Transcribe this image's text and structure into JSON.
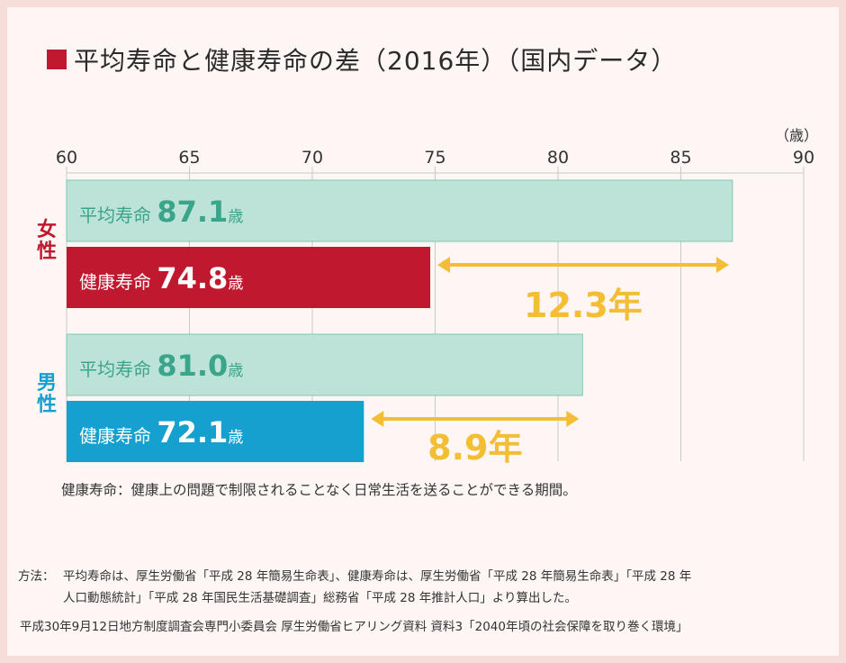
{
  "title": "平均寿命と健康寿命の差（2016年）（国内データ）",
  "colors": {
    "accent_red": "#c0182f",
    "accent_blue": "#16a0cf",
    "avg_bar_fill": "#bde3d8",
    "avg_bar_stroke": "#7fc7b3",
    "avg_text": "#3aa58a",
    "gap_arrow": "#f3bd34",
    "grid": "#c9c9c9"
  },
  "chart_data": {
    "type": "bar",
    "orientation": "horizontal",
    "xaxis_unit_label": "（歳）",
    "xlim": [
      60,
      90
    ],
    "ticks": [
      60,
      65,
      70,
      75,
      80,
      85,
      90
    ],
    "unit": "歳",
    "series": [
      {
        "name": "平均寿命",
        "labels": [
          "平均寿命",
          "平均寿命"
        ]
      },
      {
        "name": "健康寿命",
        "labels": [
          "健康寿命",
          "健康寿命"
        ]
      }
    ],
    "groups": [
      {
        "category": "女性",
        "avg_label": "平均寿命",
        "avg_value": 87.1,
        "avg_display": "87.1",
        "health_label": "健康寿命",
        "health_value": 74.8,
        "health_display": "74.8",
        "gap_display": "12.3年"
      },
      {
        "category": "男性",
        "avg_label": "平均寿命",
        "avg_value": 81.0,
        "avg_display": "81.0",
        "health_label": "健康寿命",
        "health_value": 72.1,
        "health_display": "72.1",
        "gap_display": "8.9年"
      }
    ]
  },
  "note": "健康寿命：健康上の問題で制限されることなく日常生活を送ることができる期間。",
  "method": {
    "label": "方法：",
    "line1": "平均寿命は、厚生労働省「平成 28 年簡易生命表」、健康寿命は、厚生労働省「平成 28 年簡易生命表」「平成 28 年",
    "line2": "人口動態統計」「平成 28 年国民生活基礎調査」総務省「平成 28 年推計人口」より算出した。"
  },
  "source": "平成30年9月12日地方制度調査会専門小委員会 厚生労働省ヒアリング資料 資料3「2040年頃の社会保障を取り巻く環境」"
}
